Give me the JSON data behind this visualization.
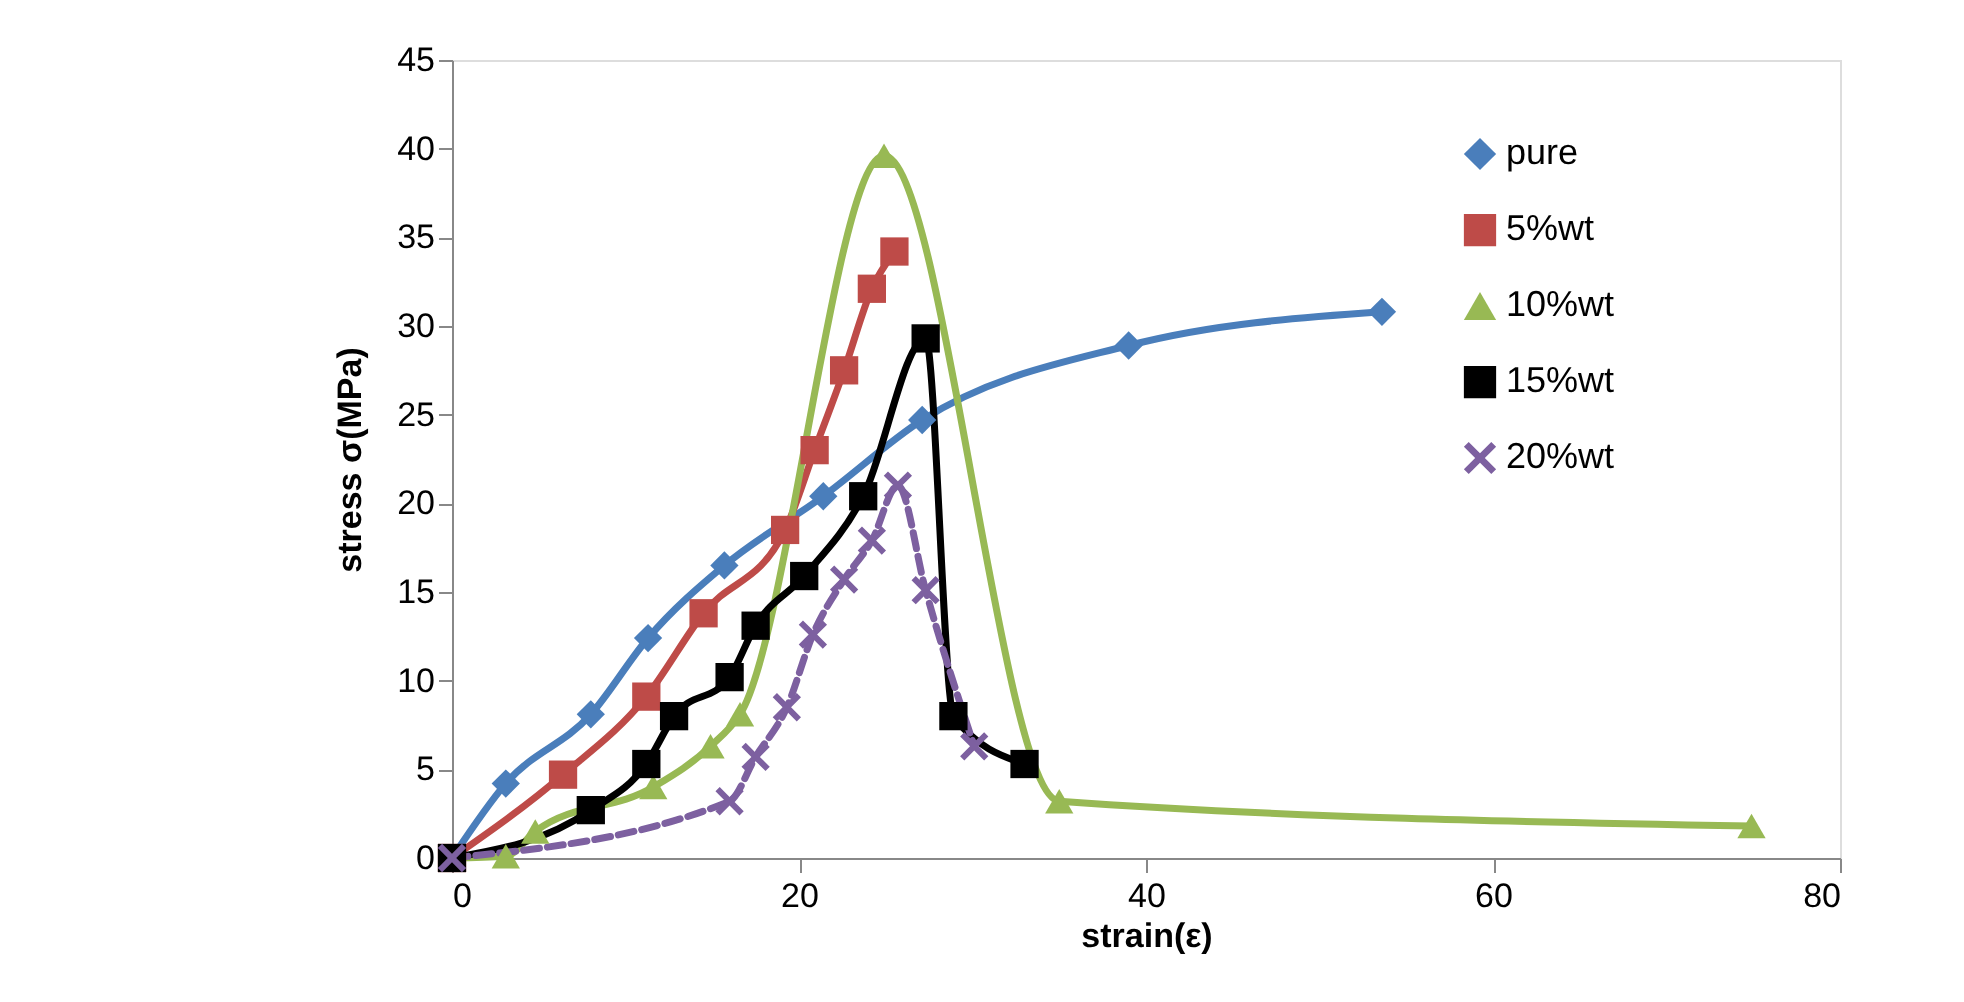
{
  "chart_data": {
    "type": "line",
    "xlabel": "strain(ε)",
    "ylabel": "stress σ(MPa)",
    "xlim": [
      0,
      80
    ],
    "ylim": [
      0,
      45
    ],
    "xticks": [
      0,
      20,
      40,
      60,
      80
    ],
    "yticks": [
      0,
      5,
      10,
      15,
      20,
      25,
      30,
      35,
      40,
      45
    ],
    "grid": false,
    "legend": "top right",
    "series": [
      {
        "name": "pure",
        "color": "#4a7ebb",
        "marker": "diamond",
        "line_style": "solid",
        "x": [
          0,
          3.1,
          8.0,
          11.3,
          15.7,
          21.4,
          27.1,
          39.0,
          53.6
        ],
        "values": [
          0,
          4.2,
          8.1,
          12.4,
          16.5,
          20.4,
          24.7,
          28.9,
          30.8
        ]
      },
      {
        "name": "5%wt",
        "color": "#be4b48",
        "marker": "square",
        "line_style": "solid",
        "x": [
          0,
          6.4,
          11.2,
          14.5,
          19.2,
          20.9,
          22.6,
          24.2,
          25.5
        ],
        "values": [
          0,
          4.7,
          9.1,
          13.8,
          18.5,
          23.0,
          27.5,
          32.1,
          34.2
        ]
      },
      {
        "name": "10%wt",
        "color": "#98b954",
        "marker": "triangle",
        "line_style": "solid",
        "x": [
          0,
          3.1,
          4.8,
          11.6,
          14.9,
          16.6,
          24.9,
          35.0,
          74.9
        ],
        "values": [
          0,
          0.1,
          1.5,
          4.0,
          6.3,
          8.1,
          39.6,
          3.2,
          1.8
        ]
      },
      {
        "name": "15%wt",
        "color": "#000000",
        "marker": "square",
        "line_style": "solid",
        "x": [
          0,
          8.0,
          11.2,
          12.8,
          16.0,
          17.5,
          20.3,
          23.7,
          27.3,
          28.9,
          33.0
        ],
        "values": [
          0,
          2.7,
          5.3,
          8.0,
          10.2,
          13.1,
          15.9,
          20.4,
          29.3,
          8.0,
          5.3
        ]
      },
      {
        "name": "20%wt",
        "color": "#7d60a0",
        "marker": "cross",
        "line_style": "dashed",
        "x": [
          0,
          16.0,
          17.5,
          19.3,
          20.8,
          22.6,
          24.2,
          25.7,
          27.3,
          30.1
        ],
        "values": [
          0,
          3.2,
          5.7,
          8.5,
          12.6,
          15.7,
          17.9,
          21.0,
          15.1,
          6.3
        ]
      }
    ]
  }
}
